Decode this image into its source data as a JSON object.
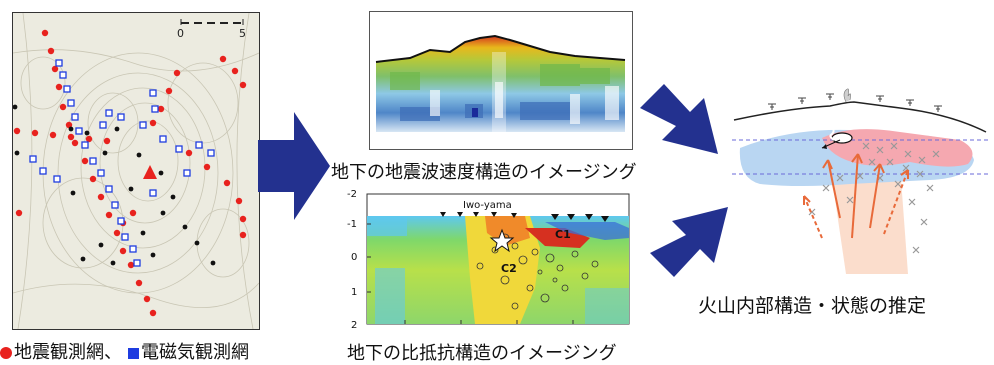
{
  "map": {
    "scale_min": "0",
    "scale_max": "5"
  },
  "captions": {
    "seismic": "地下の地震波速度構造のイメージング",
    "resistivity": "地下の比抵抗構造のイメージング",
    "inference": "火山内部構造・状態の推定"
  },
  "legend": {
    "seismic_label": "地震観測網、",
    "em_label": "電磁気観測網",
    "seismic_color": "#e8221e",
    "em_color": "#1e3ce0"
  },
  "resistivity_panel": {
    "peak_label": "Iwo-yama",
    "y_ticks": [
      "-2",
      "-1",
      "0",
      "1",
      "2"
    ],
    "labels": [
      "C1",
      "C2"
    ]
  },
  "colors": {
    "arrow": "#23318f",
    "red_station": "#e8221e",
    "blue_station": "#1e3ce0",
    "hypo_red": "#e85a2a"
  }
}
